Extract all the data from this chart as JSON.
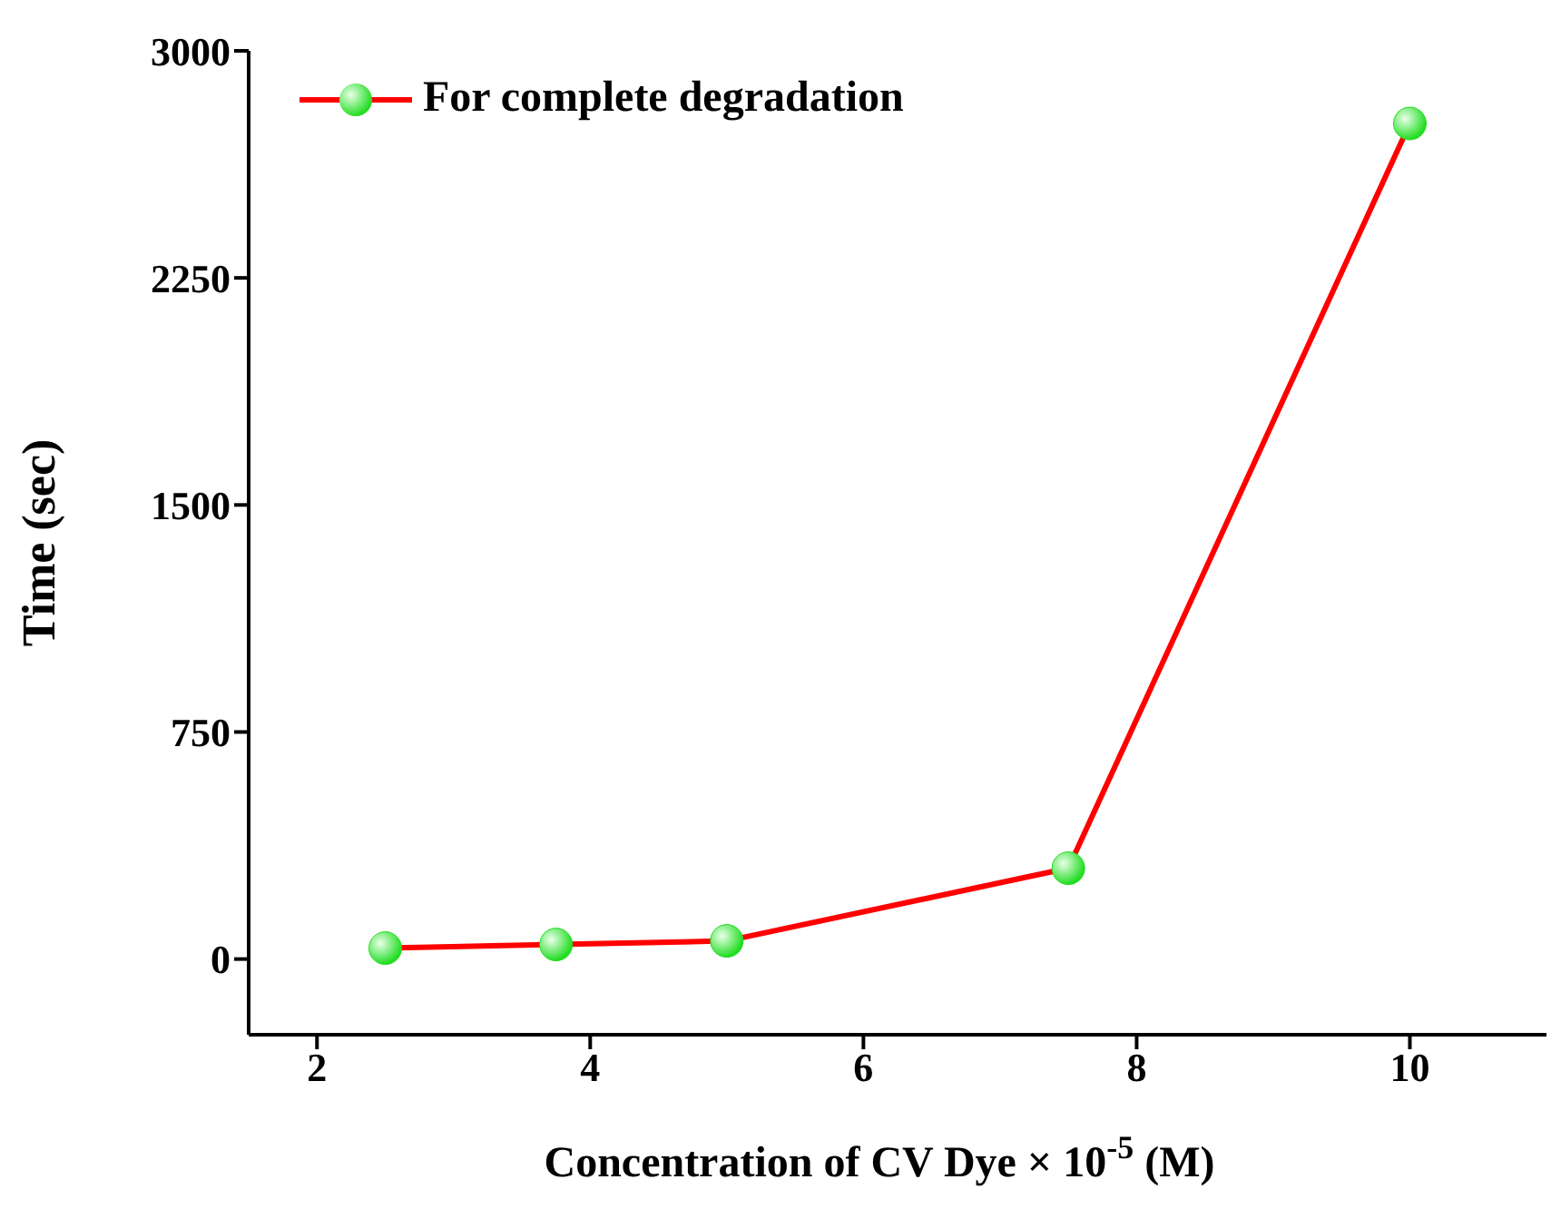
{
  "chart_data": {
    "type": "line",
    "xlabel": "Concentration of CV Dye × 10$^{-5}$ (M)",
    "ylabel": "Time (sec)",
    "x": [
      2.5,
      3.75,
      5,
      7.5,
      10
    ],
    "series": [
      {
        "name": "For complete degradation",
        "color": "#ff0000",
        "colors": [
          "#22dd22",
          "#22dd22",
          "#22dd22",
          "#22dd22",
          "#22dd22"
        ],
        "values": [
          36,
          48,
          60,
          300,
          2760
        ]
      }
    ],
    "xlim": [
      1.5,
      11
    ],
    "xticks": [
      2,
      4,
      6,
      8,
      10
    ],
    "ylim": [
      -250,
      3000
    ],
    "yticks": [
      0,
      750,
      1500,
      2250,
      3000
    ],
    "grid": false,
    "legend": "top left",
    "marker": "circle",
    "line_style": "solid"
  }
}
